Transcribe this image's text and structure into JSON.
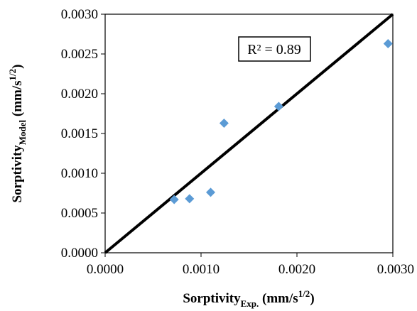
{
  "chart_data": {
    "type": "scatter",
    "title": "",
    "xlabel": {
      "main": "Sorptivity",
      "sub": "Exp.",
      "unit_pre": " (mm/s",
      "unit_sup": "1/2",
      "unit_post": ")"
    },
    "ylabel": {
      "main": "Sorptivity",
      "sub": "Model",
      "unit_pre": " (mm/s",
      "unit_sup": "1/2",
      "unit_post": ")"
    },
    "xlim": [
      0,
      0.003
    ],
    "ylim": [
      0,
      0.003
    ],
    "xticks": [
      "0.0000",
      "0.0010",
      "0.0020",
      "0.0030"
    ],
    "yticks": [
      "0.0000",
      "0.0005",
      "0.0010",
      "0.0015",
      "0.0020",
      "0.0025",
      "0.0030"
    ],
    "grid": false,
    "marker": "diamond",
    "marker_color": "#5B9BD5",
    "line_color": "#000000",
    "points": [
      {
        "x": 0.00072,
        "y": 0.00067
      },
      {
        "x": 0.00088,
        "y": 0.00068
      },
      {
        "x": 0.0011,
        "y": 0.00076
      },
      {
        "x": 0.00124,
        "y": 0.00163
      },
      {
        "x": 0.00181,
        "y": 0.00184
      },
      {
        "x": 0.00295,
        "y": 0.00263
      }
    ],
    "reference_line": {
      "from": [
        0,
        0
      ],
      "to": [
        0.003,
        0.003
      ]
    },
    "annotation": {
      "text": "R² = 0.89"
    }
  }
}
